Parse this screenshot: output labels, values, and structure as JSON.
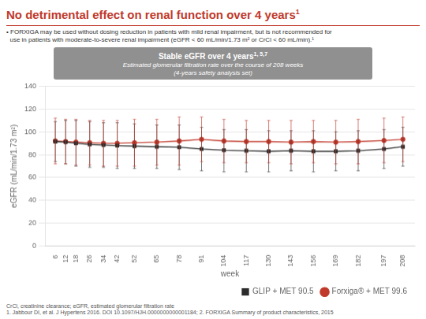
{
  "chart_data": {
    "type": "line",
    "title": "No detrimental effect on renal function over 4 years",
    "title_superscript": "1",
    "title_color": "#c0392b",
    "notes": [
      "• FORXIGA may be used without dosing reduction in patients with mild renal impairment, but is not recommended for",
      "  use in patients with moderate-to-severe renal impairment (eGFR < 60 mL/min/1.73 m² or CrCl < 60 mL/min).¹"
    ],
    "box_title": "Stable eGFR over 4 years",
    "box_title_superscript": "1, 5,7",
    "box_subtitle": [
      "Estimated glomerular filtration rate over the course of 208 weeks",
      "(4-years safety analysis set)"
    ],
    "footnotes": [
      "CrCl, creatinine clearance; eGFR, estimated glomerular filtration rate",
      "1. Jabbour DI, et al. J Hypertens 2016. DOI 10.1097/HJH.0000000000001184; 2. FORXIGA Summary of product characteristics, 2015"
    ],
    "xlabel": "week",
    "ylabel": "eGFR (mL/min/1.73 m²)",
    "x": [
      6,
      12,
      18,
      26,
      34,
      42,
      52,
      65,
      78,
      91,
      104,
      117,
      130,
      143,
      156,
      169,
      182,
      197,
      208
    ],
    "series": [
      {
        "name": "GLIP + MET 90.5",
        "color": "#2c2c2c",
        "marker": "square",
        "values": [
          91.5,
          91.0,
          90.0,
          89.0,
          88.5,
          88.0,
          87.5,
          87.0,
          86.5,
          85.0,
          84.0,
          83.5,
          83.0,
          83.5,
          83.0,
          83.0,
          83.5,
          85.0,
          87.0
        ],
        "upper": [
          109,
          110,
          110,
          109,
          108,
          108,
          107,
          106,
          106,
          104,
          102,
          102,
          101,
          101,
          101,
          100,
          101,
          102,
          104
        ],
        "lower": [
          74,
          72,
          70,
          69,
          69,
          68,
          68,
          68,
          67,
          66,
          65,
          65,
          65,
          66,
          65,
          66,
          66,
          68,
          70
        ]
      },
      {
        "name": "Forxiga® + MET 99.6",
        "color": "#c0392b",
        "marker": "circle",
        "values": [
          92.0,
          91.5,
          91.0,
          90.5,
          90.0,
          90.0,
          90.5,
          91.0,
          92.0,
          93.5,
          92.0,
          91.5,
          91.5,
          91.0,
          91.5,
          91.0,
          91.5,
          92.5,
          93.5
        ],
        "upper": [
          112,
          111,
          111,
          110,
          110,
          110,
          111,
          111,
          113,
          113,
          111,
          110,
          110,
          110,
          110,
          110,
          111,
          112,
          113
        ],
        "lower": [
          72,
          72,
          71,
          71,
          70,
          70,
          70,
          71,
          71,
          74,
          73,
          73,
          73,
          72,
          73,
          72,
          72,
          73,
          74
        ]
      }
    ],
    "xlim": [
      0,
      215
    ],
    "xticks": [
      6,
      12,
      18,
      26,
      34,
      42,
      52,
      65,
      78,
      91,
      104,
      117,
      130,
      143,
      156,
      169,
      182,
      197,
      208
    ],
    "ylim": [
      0,
      140
    ],
    "yticks": [
      0,
      20,
      40,
      60,
      80,
      100,
      120,
      140
    ],
    "grid": "y",
    "legend": "lower right"
  }
}
